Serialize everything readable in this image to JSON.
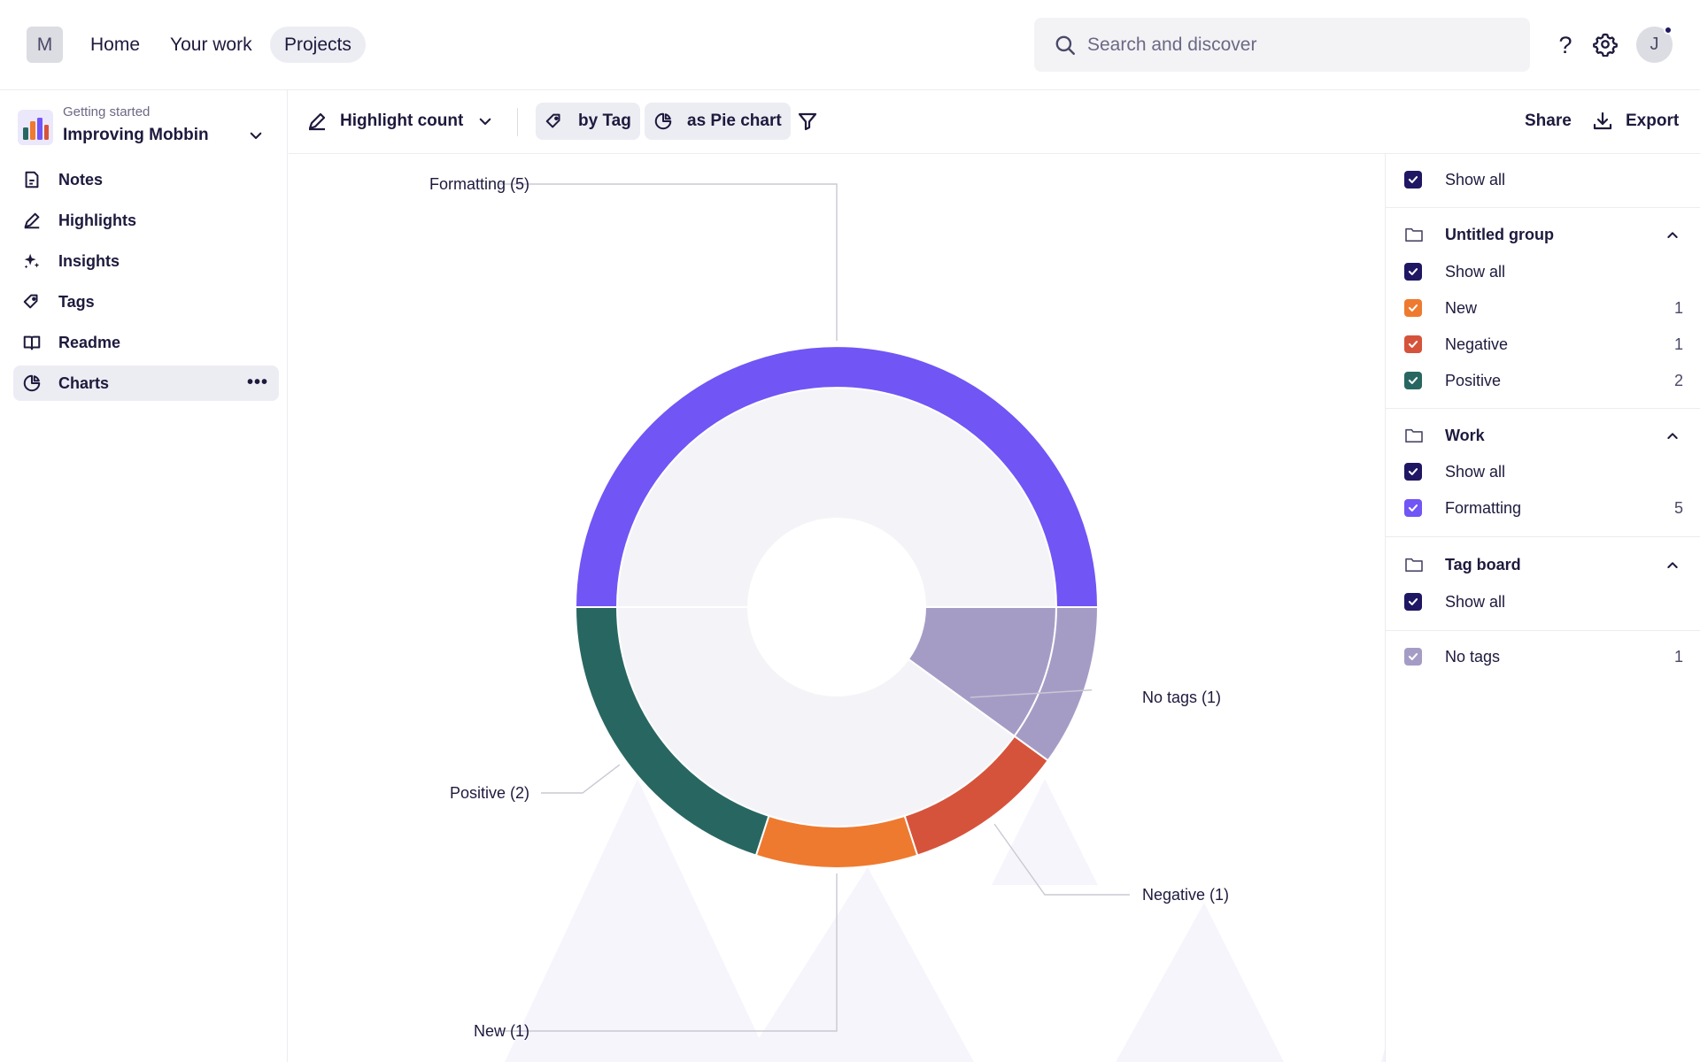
{
  "topbar": {
    "workspace_initial": "M",
    "nav": [
      {
        "label": "Home"
      },
      {
        "label": "Your work"
      },
      {
        "label": "Projects"
      }
    ],
    "search_placeholder": "Search and discover",
    "help_glyph": "?",
    "avatar_initial": "J"
  },
  "sidebar": {
    "project_subtitle": "Getting started",
    "project_name": "Improving Mobbin",
    "items": [
      {
        "label": "Notes",
        "icon": "note-icon"
      },
      {
        "label": "Highlights",
        "icon": "highlighter-icon"
      },
      {
        "label": "Insights",
        "icon": "sparkle-icon"
      },
      {
        "label": "Tags",
        "icon": "tag-icon"
      },
      {
        "label": "Readme",
        "icon": "book-icon"
      },
      {
        "label": "Charts",
        "icon": "pie-chart-icon",
        "active": true
      }
    ],
    "more_glyph": "•••"
  },
  "toolbar": {
    "measure_label": "Highlight count",
    "group_label": "by Tag",
    "view_label": "as Pie chart",
    "share_label": "Share",
    "export_label": "Export"
  },
  "chart_data": {
    "type": "pie",
    "slices": [
      {
        "label": "Formatting (5)",
        "name": "Formatting",
        "value": 5,
        "color": "#7155f5",
        "group": "Work"
      },
      {
        "label": "No tags (1)",
        "name": "No tags",
        "value": 1,
        "color": "#a59cc6",
        "group": ""
      },
      {
        "label": "Negative (1)",
        "name": "Negative",
        "value": 1,
        "color": "#d6533b",
        "group": "Untitled group"
      },
      {
        "label": "New (1)",
        "name": "New",
        "value": 1,
        "color": "#ee7a2f",
        "group": "Untitled group"
      },
      {
        "label": "Positive (2)",
        "name": "Positive",
        "value": 2,
        "color": "#286761",
        "group": "Untitled group"
      }
    ],
    "inner_groups": [
      {
        "name": "Work",
        "value": 5,
        "color": "#f4f4f8"
      },
      {
        "name": "No tags",
        "value": 1,
        "color": "#a59cc6"
      },
      {
        "name": "Untitled group",
        "value": 4,
        "color": "#f4f4f8"
      }
    ]
  },
  "legend": {
    "show_all_label": "Show all",
    "groups": [
      {
        "name": "Untitled group",
        "items": [
          {
            "label": "New",
            "count": "1",
            "color": "#ee7a2f"
          },
          {
            "label": "Negative",
            "count": "1",
            "color": "#d6533b"
          },
          {
            "label": "Positive",
            "count": "2",
            "color": "#286761"
          }
        ]
      },
      {
        "name": "Work",
        "items": [
          {
            "label": "Formatting",
            "count": "5",
            "color": "#7155f5"
          }
        ]
      },
      {
        "name": "Tag board",
        "items": []
      }
    ],
    "no_tags": {
      "label": "No tags",
      "count": "1",
      "color": "#a59cc6"
    },
    "check_color": "#1f1763"
  }
}
